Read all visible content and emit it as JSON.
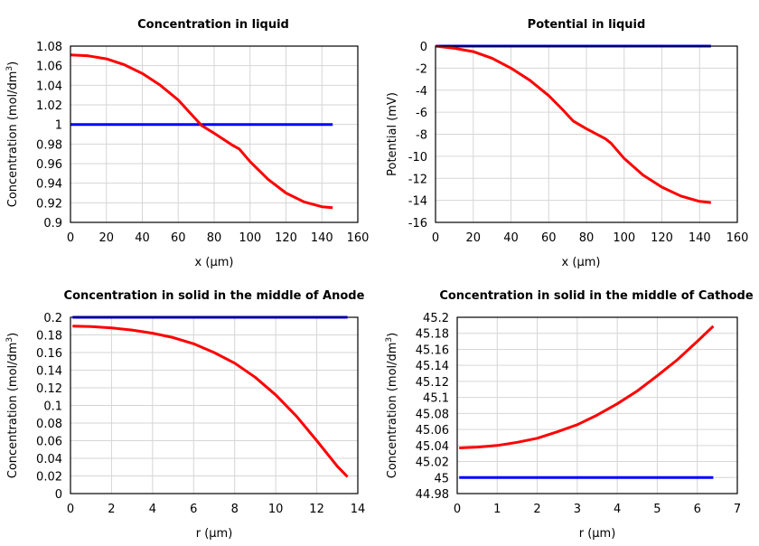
{
  "chart_data": [
    {
      "type": "line",
      "title": "Concentration in liquid",
      "xlabel": "x (µm)",
      "ylabel": "Concentration (mol/dm3)",
      "ylabel_base": "Concentration (mol/dm",
      "ylabel_sup": "3",
      "ylabel_end": ")",
      "xlim": [
        0,
        160
      ],
      "ylim": [
        0.9,
        1.08
      ],
      "xticks": [
        0,
        20,
        40,
        60,
        80,
        100,
        120,
        140,
        160
      ],
      "yticks": [
        0.9,
        0.92,
        0.94,
        0.96,
        0.98,
        1,
        1.02,
        1.04,
        1.06,
        1.08
      ],
      "grid": true,
      "series": [
        {
          "color": "#0000ff",
          "x": [
            0,
            146
          ],
          "y": [
            1.0,
            1.0
          ]
        },
        {
          "color": "#ff0000",
          "x": [
            0,
            10,
            20,
            30,
            40,
            50,
            60,
            70,
            73,
            80,
            90,
            94,
            100,
            110,
            120,
            130,
            140,
            146
          ],
          "y": [
            1.071,
            1.07,
            1.067,
            1.061,
            1.052,
            1.04,
            1.025,
            1.005,
            0.999,
            0.991,
            0.979,
            0.975,
            0.962,
            0.944,
            0.93,
            0.921,
            0.916,
            0.915
          ]
        }
      ]
    },
    {
      "type": "line",
      "title": "Potential in liquid",
      "xlabel": "x (µm)",
      "ylabel": "Potential (mV)",
      "xlim": [
        0,
        160
      ],
      "ylim": [
        -16,
        0
      ],
      "xticks": [
        0,
        20,
        40,
        60,
        80,
        100,
        120,
        140,
        160
      ],
      "yticks": [
        -16,
        -14,
        -12,
        -10,
        -8,
        -6,
        -4,
        -2,
        0
      ],
      "grid": true,
      "series": [
        {
          "color": "#0000ff",
          "x": [
            0,
            146
          ],
          "y": [
            0,
            0
          ]
        },
        {
          "color": "#ff0000",
          "x": [
            0,
            10,
            20,
            30,
            40,
            50,
            60,
            67,
            73,
            80,
            90,
            93,
            100,
            110,
            120,
            130,
            140,
            146
          ],
          "y": [
            0,
            -0.2,
            -0.5,
            -1.1,
            -2.0,
            -3.1,
            -4.5,
            -5.7,
            -6.8,
            -7.5,
            -8.4,
            -8.8,
            -10.2,
            -11.7,
            -12.8,
            -13.6,
            -14.1,
            -14.2
          ]
        }
      ]
    },
    {
      "type": "line",
      "title": "Concentration in solid in the middle of Anode",
      "xlabel": "r (µm)",
      "ylabel": "Concentration (mol/dm3)",
      "ylabel_base": "Concentration (mol/dm",
      "ylabel_sup": "3",
      "ylabel_end": ")",
      "xlim": [
        0,
        14
      ],
      "ylim": [
        0,
        0.2
      ],
      "xticks": [
        0,
        2,
        4,
        6,
        8,
        10,
        12,
        14
      ],
      "yticks": [
        0,
        0.02,
        0.04,
        0.06,
        0.08,
        0.1,
        0.12,
        0.14,
        0.16,
        0.18,
        0.2
      ],
      "grid": true,
      "series": [
        {
          "color": "#0000ff",
          "x": [
            0.1,
            13.5
          ],
          "y": [
            0.2,
            0.2
          ]
        },
        {
          "color": "#ff0000",
          "x": [
            0.1,
            1,
            2,
            3,
            4,
            5,
            6,
            7,
            8,
            9,
            10,
            11,
            12,
            13,
            13.5
          ],
          "y": [
            0.19,
            0.1895,
            0.188,
            0.1855,
            0.182,
            0.177,
            0.17,
            0.16,
            0.148,
            0.132,
            0.112,
            0.088,
            0.06,
            0.031,
            0.019
          ]
        }
      ]
    },
    {
      "type": "line",
      "title": "Concentration in solid in the middle of Cathode",
      "xlabel": "r (µm)",
      "ylabel": "Concentration (mol/dm3)",
      "ylabel_base": "Concentration (mol/dm",
      "ylabel_sup": "3",
      "ylabel_end": ")",
      "xlim": [
        0,
        7
      ],
      "ylim": [
        44.98,
        45.2
      ],
      "xticks": [
        0,
        1,
        2,
        3,
        4,
        5,
        6,
        7
      ],
      "yticks": [
        44.98,
        45,
        45.02,
        45.04,
        45.06,
        45.08,
        45.1,
        45.12,
        45.14,
        45.16,
        45.18,
        45.2
      ],
      "grid": true,
      "series": [
        {
          "color": "#0000ff",
          "x": [
            0.05,
            6.4
          ],
          "y": [
            45.0,
            45.0
          ]
        },
        {
          "color": "#ff0000",
          "x": [
            0.05,
            0.5,
            1,
            1.5,
            2,
            2.5,
            3,
            3.5,
            4,
            4.5,
            5,
            5.5,
            6,
            6.4
          ],
          "y": [
            45.037,
            45.038,
            45.04,
            45.044,
            45.049,
            45.057,
            45.066,
            45.078,
            45.092,
            45.108,
            45.127,
            45.147,
            45.17,
            45.189
          ]
        }
      ]
    }
  ]
}
